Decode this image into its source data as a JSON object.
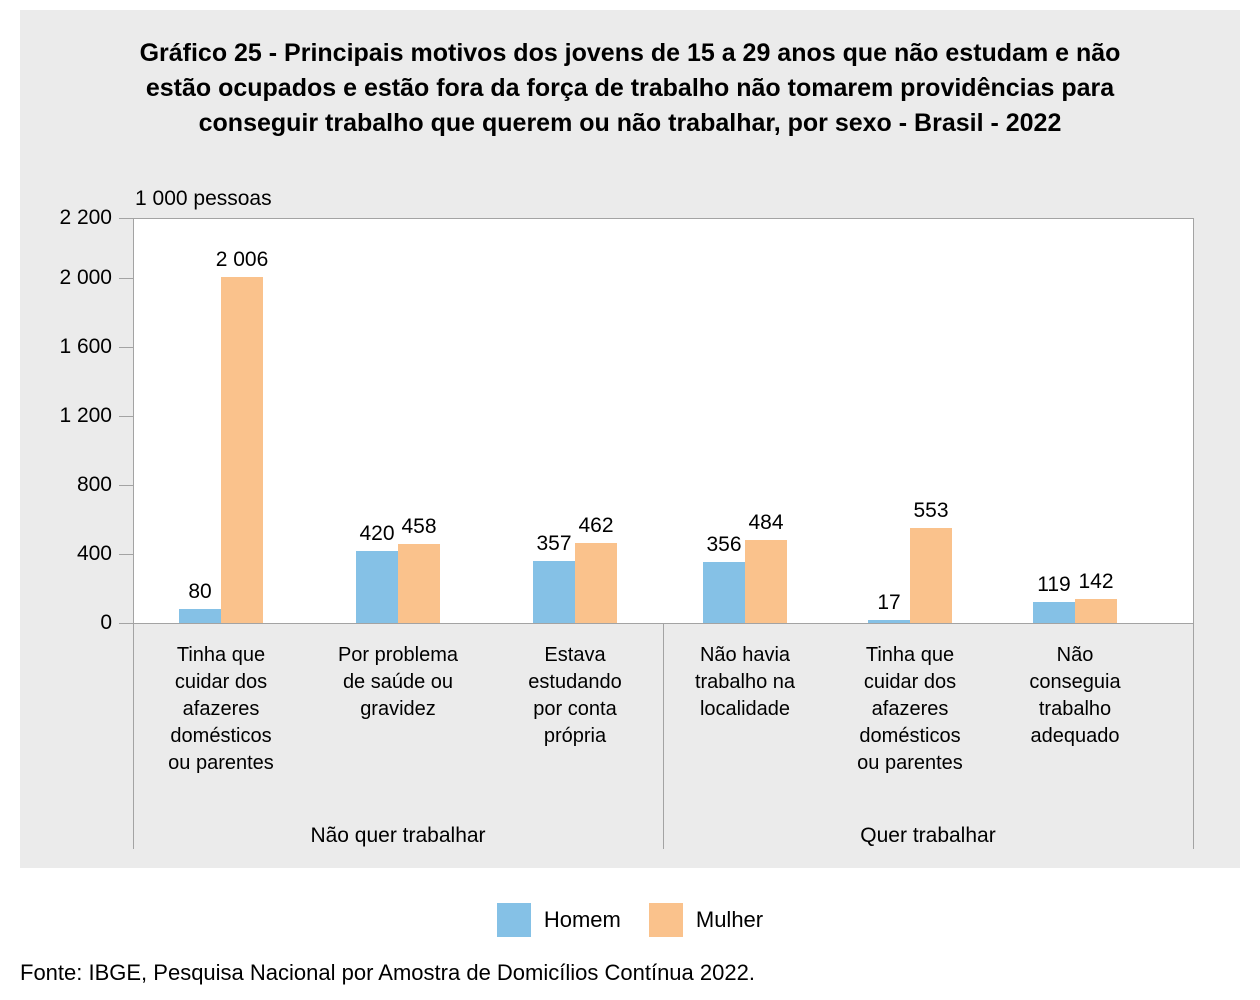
{
  "title": "Gráfico 25 - Principais motivos dos jovens de 15 a 29 anos que não estudam e não\nestão ocupados e estão fora da força de trabalho não tomarem providências para\nconseguir trabalho que querem ou não trabalhar, por sexo - Brasil - 2022",
  "source": "Fonte: IBGE, Pesquisa Nacional por Amostra de Domicílios Contínua 2022.",
  "colors": {
    "panel_background": "#ebebeb",
    "plot_background": "#ffffff",
    "axis_line": "#a3a3a3",
    "homem": "#85c1e6",
    "mulher": "#fac28c"
  },
  "chart_data": {
    "type": "bar",
    "title": "Gráfico 25 - Principais motivos dos jovens de 15 a 29 anos que não estudam e não estão ocupados e estão fora da força de trabalho não tomarem providências para conseguir trabalho que querem ou não trabalhar, por sexo - Brasil - 2022",
    "unit_label": "1 000 pessoas",
    "ylabel": "1 000 pessoas",
    "xlabel": "",
    "ylim": [
      0,
      2200
    ],
    "grid": false,
    "legend_position": "bottom",
    "y_ticks": [
      {
        "value": 0,
        "label": "0"
      },
      {
        "value": 400,
        "label": "400"
      },
      {
        "value": 800,
        "label": "800"
      },
      {
        "value": 1200,
        "label": "1 200"
      },
      {
        "value": 1600,
        "label": "1 600"
      },
      {
        "value": 2000,
        "label": "2 000"
      }
    ],
    "y_top_tick": {
      "value": 2200,
      "label": "2 200"
    },
    "categories": [
      "Tinha que\ncuidar dos\nafazeres\ndomésticos\nou parentes",
      "Por problema\nde saúde ou\ngravidez",
      "Estava\nestudando\npor conta\nprópria",
      "Não havia\ntrabalho na\nlocalidade",
      "Tinha que\ncuidar dos\nafazeres\ndomésticos\nou parentes",
      "Não\nconseguia\ntrabalho\nadequado"
    ],
    "groups": [
      {
        "label": "Não quer trabalhar",
        "category_indexes": [
          0,
          1,
          2
        ]
      },
      {
        "label": "Quer trabalhar",
        "category_indexes": [
          3,
          4,
          5
        ]
      }
    ],
    "series": [
      {
        "name": "Homem",
        "color": "#85c1e6",
        "values": [
          80,
          420,
          357,
          356,
          17,
          119
        ],
        "value_labels": [
          "80",
          "420",
          "357",
          "356",
          "17",
          "119"
        ]
      },
      {
        "name": "Mulher",
        "color": "#fac28c",
        "values": [
          2006,
          458,
          462,
          484,
          553,
          142
        ],
        "value_labels": [
          "2 006",
          "458",
          "462",
          "484",
          "553",
          "142"
        ]
      }
    ]
  },
  "legend": [
    {
      "label": "Homem",
      "color": "#85c1e6"
    },
    {
      "label": "Mulher",
      "color": "#fac28c"
    }
  ]
}
